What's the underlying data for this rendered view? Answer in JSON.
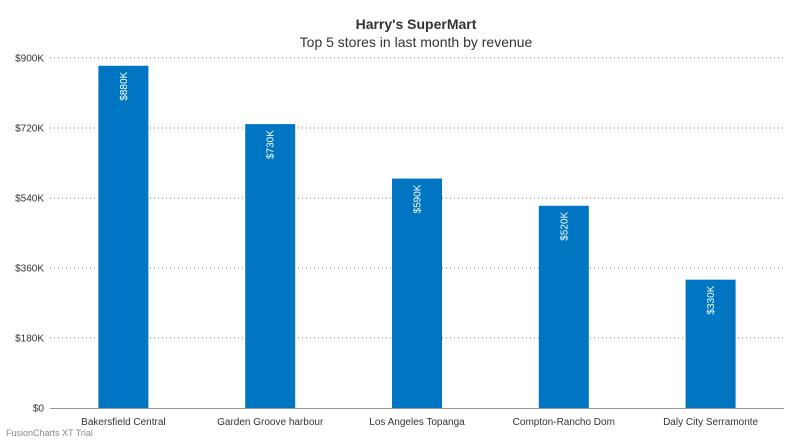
{
  "chart_data": {
    "type": "bar",
    "title": "Harry's SuperMart",
    "subtitle": "Top 5 stores in last month by revenue",
    "categories": [
      "Bakersfield Central",
      "Garden Groove harbour",
      "Los Angeles Topanga",
      "Compton-Rancho Dom",
      "Daly City Serramonte"
    ],
    "values": [
      880000,
      730000,
      590000,
      520000,
      330000
    ],
    "data_labels": [
      "$880K",
      "$730K",
      "$590K",
      "$520K",
      "$330K"
    ],
    "ylim": [
      0,
      900000
    ],
    "y_ticks": [
      0,
      180000,
      360000,
      540000,
      720000,
      900000
    ],
    "y_tick_labels": [
      "$0",
      "$180K",
      "$360K",
      "$540K",
      "$720K",
      "$900K"
    ],
    "xlabel": "",
    "ylabel": "",
    "grid": true,
    "bar_color": "#0075c2"
  },
  "watermark": "FusionCharts XT Trial"
}
